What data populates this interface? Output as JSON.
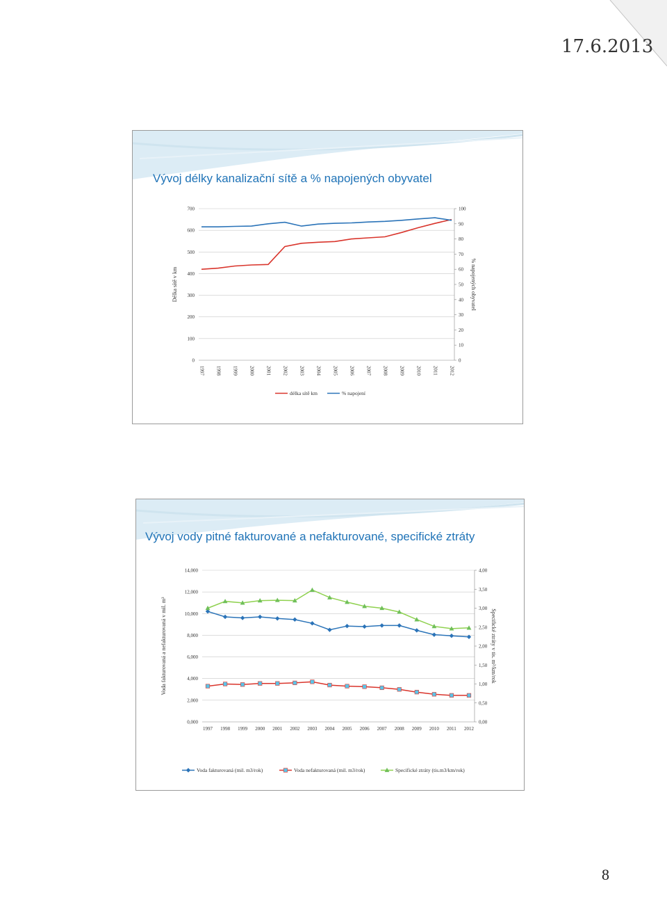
{
  "header": {
    "date": "17.6.2013"
  },
  "footer": {
    "page_number": "8"
  },
  "slides": [
    {
      "title": "Vývoj délky kanalizační sítě a % napojených obyvatel"
    },
    {
      "title": "Vývoj vody pitné fakturované a nefakturované, specifické ztráty"
    }
  ],
  "chart_data": [
    {
      "type": "line",
      "categories": [
        "1997",
        "1998",
        "1999",
        "2000",
        "2001",
        "2002",
        "2003",
        "2004",
        "2005",
        "2006",
        "2007",
        "2008",
        "2009",
        "2010",
        "2011",
        "2012"
      ],
      "ylabel": "Délka sítě v km",
      "ylabel_right": "% napojených obyvatel",
      "ylim": [
        0,
        700
      ],
      "ylim_right": [
        0,
        100
      ],
      "yticks": [
        "0",
        "100",
        "200",
        "300",
        "400",
        "500",
        "600",
        "700"
      ],
      "yticks_right": [
        "0",
        "10",
        "20",
        "30",
        "40",
        "50",
        "60",
        "70",
        "80",
        "90",
        "100"
      ],
      "grid": true,
      "legend_position": "bottom",
      "series": [
        {
          "name": "délka sítě km",
          "axis": "left",
          "color": "#d9342b",
          "values": [
            420,
            425,
            435,
            440,
            442,
            525,
            540,
            545,
            548,
            560,
            565,
            570,
            590,
            612,
            632,
            650
          ]
        },
        {
          "name": "% napojení",
          "axis": "right",
          "color": "#2a73b8",
          "values": [
            88,
            88,
            88.3,
            88.5,
            90,
            91,
            88.5,
            89.8,
            90.3,
            90.6,
            91.2,
            91.6,
            92.3,
            93.2,
            94,
            92.3
          ]
        }
      ]
    },
    {
      "type": "line",
      "categories": [
        "1997",
        "1998",
        "1999",
        "2000",
        "2001",
        "2002",
        "2003",
        "2004",
        "2005",
        "2006",
        "2007",
        "2008",
        "2009",
        "2010",
        "2011",
        "2012"
      ],
      "ylabel": "Voda fakturovaná a nefakturovaná v mil. m³",
      "ylabel_right": "Specifické ztráty v tis. m³/km/rok",
      "ylim": [
        0,
        14
      ],
      "ylim_right": [
        0,
        4
      ],
      "yticks": [
        "0,000",
        "2,000",
        "4,000",
        "6,000",
        "8,000",
        "10,000",
        "12,000",
        "14,000"
      ],
      "yticks_right": [
        "0,00",
        "0,50",
        "1,00",
        "1,50",
        "2,00",
        "2,50",
        "3,00",
        "3,50",
        "4,00"
      ],
      "grid": true,
      "legend_position": "bottom",
      "series": [
        {
          "name": "Voda fakturovaná (mil. m3/rok)",
          "axis": "left",
          "color": "#2a73b8",
          "marker": "diamond",
          "values": [
            10.2,
            9.7,
            9.6,
            9.7,
            9.55,
            9.45,
            9.1,
            8.5,
            8.85,
            8.8,
            8.9,
            8.9,
            8.45,
            8.05,
            7.95,
            7.85
          ]
        },
        {
          "name": "Voda nefakturovaná (mil. m3/rok)",
          "axis": "left",
          "color": "#d9342b",
          "marker": "square",
          "values": [
            3.3,
            3.5,
            3.45,
            3.55,
            3.55,
            3.6,
            3.7,
            3.4,
            3.3,
            3.25,
            3.15,
            3.0,
            2.75,
            2.55,
            2.45,
            2.45
          ]
        },
        {
          "name": "Specifické ztráty (tis.m3/km/rok)",
          "axis": "right",
          "color": "#8fd14f",
          "marker": "triangle",
          "values": [
            3.0,
            3.18,
            3.14,
            3.2,
            3.21,
            3.2,
            3.48,
            3.28,
            3.16,
            3.05,
            3.0,
            2.9,
            2.7,
            2.52,
            2.46,
            2.48
          ]
        }
      ]
    }
  ]
}
